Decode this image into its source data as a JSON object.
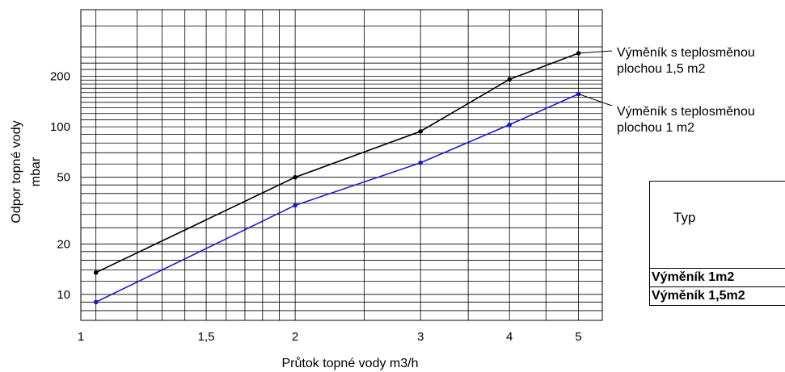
{
  "chart_data": {
    "type": "line",
    "xlabel": "Průtok topné vody  m3/h",
    "ylabel_lines": [
      "Odpor topné vody",
      "mbar"
    ],
    "x_scale": "log",
    "y_scale": "log",
    "x_ticks": [
      {
        "value": 1,
        "label": "1"
      },
      {
        "value": 1.5,
        "label": "1,5"
      },
      {
        "value": 2,
        "label": "2"
      },
      {
        "value": 3,
        "label": "3"
      },
      {
        "value": 4,
        "label": "4"
      },
      {
        "value": 5,
        "label": "5"
      }
    ],
    "y_ticks": [
      {
        "value": 10,
        "label": "10"
      },
      {
        "value": 20,
        "label": "20"
      },
      {
        "value": 50,
        "label": "50"
      },
      {
        "value": 100,
        "label": "100"
      },
      {
        "value": 200,
        "label": "200"
      }
    ],
    "xlim": [
      1,
      5.4
    ],
    "ylim": [
      7,
      500
    ],
    "grid": true,
    "x_grid": [
      1,
      1.05,
      1.2,
      1.3,
      1.4,
      1.5,
      1.6,
      1.7,
      1.8,
      1.9,
      2,
      2.5,
      3,
      3.5,
      4,
      4.5,
      5,
      5.4
    ],
    "y_grid": [
      7,
      8,
      9,
      10,
      12,
      14,
      16,
      18,
      20,
      25,
      30,
      35,
      40,
      45,
      50,
      60,
      70,
      80,
      90,
      100,
      110,
      120,
      130,
      140,
      150,
      160,
      170,
      180,
      190,
      200,
      220,
      240,
      260,
      300,
      400,
      500
    ],
    "series": [
      {
        "name": "Výměník s teplosměnou plochou 1,5 m2",
        "color": "#000000",
        "x": [
          1.05,
          2,
          3,
          4,
          5
        ],
        "y": [
          13.5,
          50,
          94,
          192,
          275
        ]
      },
      {
        "name": "Výměník s teplosměnou plochou 1 m2",
        "color": "#1a1acc",
        "x": [
          1.05,
          2,
          3,
          4,
          5
        ],
        "y": [
          9,
          34,
          61,
          103,
          157
        ]
      }
    ],
    "annotations": [
      {
        "lines": [
          "Výměník s teplosměnou",
          "plochou 1,5 m2"
        ],
        "series": 0
      },
      {
        "lines": [
          "Výměník s teplosměnou",
          "plochou 1 m2"
        ],
        "series": 1
      }
    ]
  },
  "type_table": {
    "header": "Typ",
    "rows": [
      "Výměník 1m2",
      "Výměník 1,5m2"
    ]
  }
}
